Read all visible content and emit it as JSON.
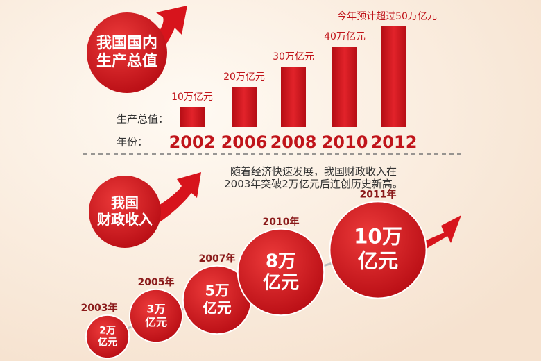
{
  "chart_data": [
    {
      "type": "bar",
      "title": "我国国内\n生产总值",
      "value_axis_label": "生产总值：",
      "category_axis_label": "年份：",
      "categories": [
        "2002",
        "2006",
        "2008",
        "2010",
        "2012"
      ],
      "values": [
        10,
        20,
        30,
        40,
        50
      ],
      "value_labels": [
        "10万亿元",
        "20万亿元",
        "30万亿元",
        "40万亿元",
        "今年预计超过50万亿元"
      ],
      "color": "#d7141c"
    },
    {
      "type": "bubble",
      "title": "我国\n财政收入",
      "annotation": "随着经济快速发展，我国财政收入在\n2003年突破2万亿元后连创历史新高。",
      "categories": [
        "2003年",
        "2005年",
        "2007年",
        "2010年",
        "2011年"
      ],
      "values": [
        2,
        3,
        5,
        8,
        10
      ],
      "value_labels": [
        "2万\n亿元",
        "3万\n亿元",
        "5万\n亿元",
        "8万\n亿元",
        "10万\n亿元"
      ],
      "color": "#d7141c"
    }
  ]
}
